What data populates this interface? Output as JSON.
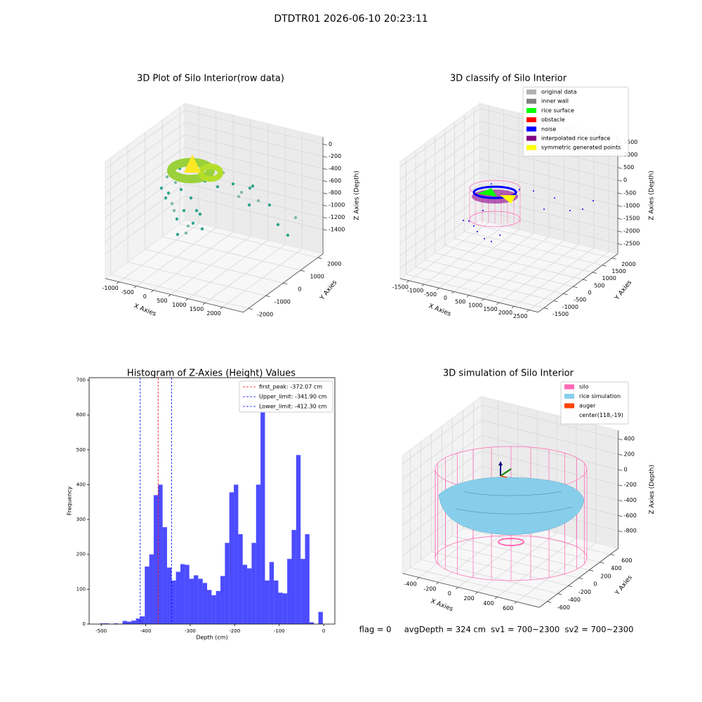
{
  "title": "DTDTR01 2026-06-10 20:23:11",
  "footer": "flag = 0     avgDepth = 324 cm  sv1 = 700~2300  sv2 = 700~2300",
  "chart_data": [
    {
      "type": "scatter3d",
      "title": "3D Plot of Silo Interior(row data)",
      "xlabel": "X Axies",
      "ylabel": "Y Axies",
      "zlabel": "Z Axies (Depth)",
      "xlim": [
        -1400,
        2600
      ],
      "ylim": [
        -2300,
        2300
      ],
      "zlim": [
        -1800,
        115
      ],
      "xticks": [
        -1000,
        -500,
        0,
        500,
        1000,
        1500,
        2000
      ],
      "yticks": [
        -2000,
        -1000,
        0,
        1000,
        2000
      ],
      "zticks": [
        -1400,
        -1200,
        -1000,
        -800,
        -600,
        -400,
        -200,
        0
      ]
    },
    {
      "type": "scatter3d",
      "title": "3D classify of Silo Interior",
      "xlabel": "X Axies",
      "ylabel": "Y Axies",
      "zlabel": "Z Axies (Depth)",
      "xlim": [
        -1800,
        2800
      ],
      "ylim": [
        -1800,
        2300
      ],
      "zlim": [
        -2900,
        1700
      ],
      "xticks": [
        -1500,
        -1000,
        -500,
        0,
        500,
        1000,
        1500,
        2000,
        2500
      ],
      "yticks": [
        -1500,
        -1000,
        -500,
        0,
        500,
        1000,
        1500,
        2000
      ],
      "zticks": [
        -2500,
        -2000,
        -1500,
        -1000,
        -500,
        0,
        500,
        1000,
        1500
      ],
      "legend": [
        {
          "name": "original data",
          "color": "#b0b0b0"
        },
        {
          "name": "inner wall",
          "color": "#808080"
        },
        {
          "name": "rice surface",
          "color": "#00ff00"
        },
        {
          "name": "obstacle",
          "color": "#ff0000"
        },
        {
          "name": "noise",
          "color": "#0000ff"
        },
        {
          "name": "interpolated rice surface",
          "color": "#800080"
        },
        {
          "name": "symmetric generated points",
          "color": "#ffff00"
        }
      ]
    },
    {
      "type": "histogram",
      "title": "Histogram of Z-Axies (Height) Values",
      "xlabel": "Depth (cm)",
      "ylabel": "Frequency",
      "color": "#0000ff",
      "bins": [
        -502,
        -492,
        -482,
        -472,
        -462,
        -452,
        -442,
        -432,
        -422,
        -412,
        -402,
        -392,
        -382,
        -372,
        -362,
        -352,
        -342,
        -332,
        -322,
        -312,
        -302,
        -292,
        -282,
        -272,
        -262,
        -252,
        -242,
        -232,
        -222,
        -212,
        -202,
        -192,
        -182,
        -172,
        -162,
        -152,
        -142,
        -132,
        -122,
        -112,
        -102,
        -92,
        -82,
        -72,
        -62,
        -52,
        -42,
        -32,
        -22,
        -12,
        -2
      ],
      "values": [
        2,
        2,
        0,
        2,
        1,
        9,
        7,
        10,
        16,
        22,
        165,
        200,
        370,
        400,
        278,
        162,
        125,
        150,
        172,
        170,
        130,
        140,
        130,
        118,
        98,
        83,
        95,
        138,
        233,
        378,
        400,
        258,
        170,
        160,
        233,
        400,
        670,
        125,
        178,
        125,
        90,
        88,
        187,
        270,
        485,
        187,
        258,
        5,
        0,
        35
      ],
      "xlim": [
        -527,
        25
      ],
      "ylim": [
        0,
        707
      ],
      "xticks": [
        -500,
        -400,
        -300,
        -200,
        -100,
        0
      ],
      "yticks": [
        0,
        100,
        200,
        300,
        400,
        500,
        600,
        700
      ],
      "vlines": [
        {
          "name": "first_peak: -372.07 cm",
          "value": -372.07,
          "color": "#ff0000"
        },
        {
          "name": "Upper_limit: -341.90 cm",
          "value": -341.9,
          "color": "#0000ff"
        },
        {
          "name": "Lower_limit: -412.30 cm",
          "value": -412.3,
          "color": "#0000ff"
        }
      ]
    },
    {
      "type": "surface3d",
      "title": "3D simulation of Silo Interior",
      "xlabel": "X Axies",
      "ylabel": "Y Axies",
      "zlabel": "Z Axies (Depth)",
      "xlim": [
        -570,
        830
      ],
      "ylim": [
        -750,
        750
      ],
      "zlim": [
        -1030,
        510
      ],
      "xticks": [
        -400,
        -200,
        0,
        200,
        400,
        600
      ],
      "yticks": [
        -600,
        -400,
        -200,
        0,
        200,
        400,
        600
      ],
      "zticks": [
        -800,
        -600,
        -400,
        -200,
        0,
        200,
        400
      ],
      "legend": [
        {
          "name": "silo",
          "color": "#ff69b4"
        },
        {
          "name": "rice simulation",
          "color": "#87ceeb"
        },
        {
          "name": "auger",
          "color": "#ff4500"
        },
        {
          "name": "center(118,-19)"
        }
      ]
    }
  ]
}
